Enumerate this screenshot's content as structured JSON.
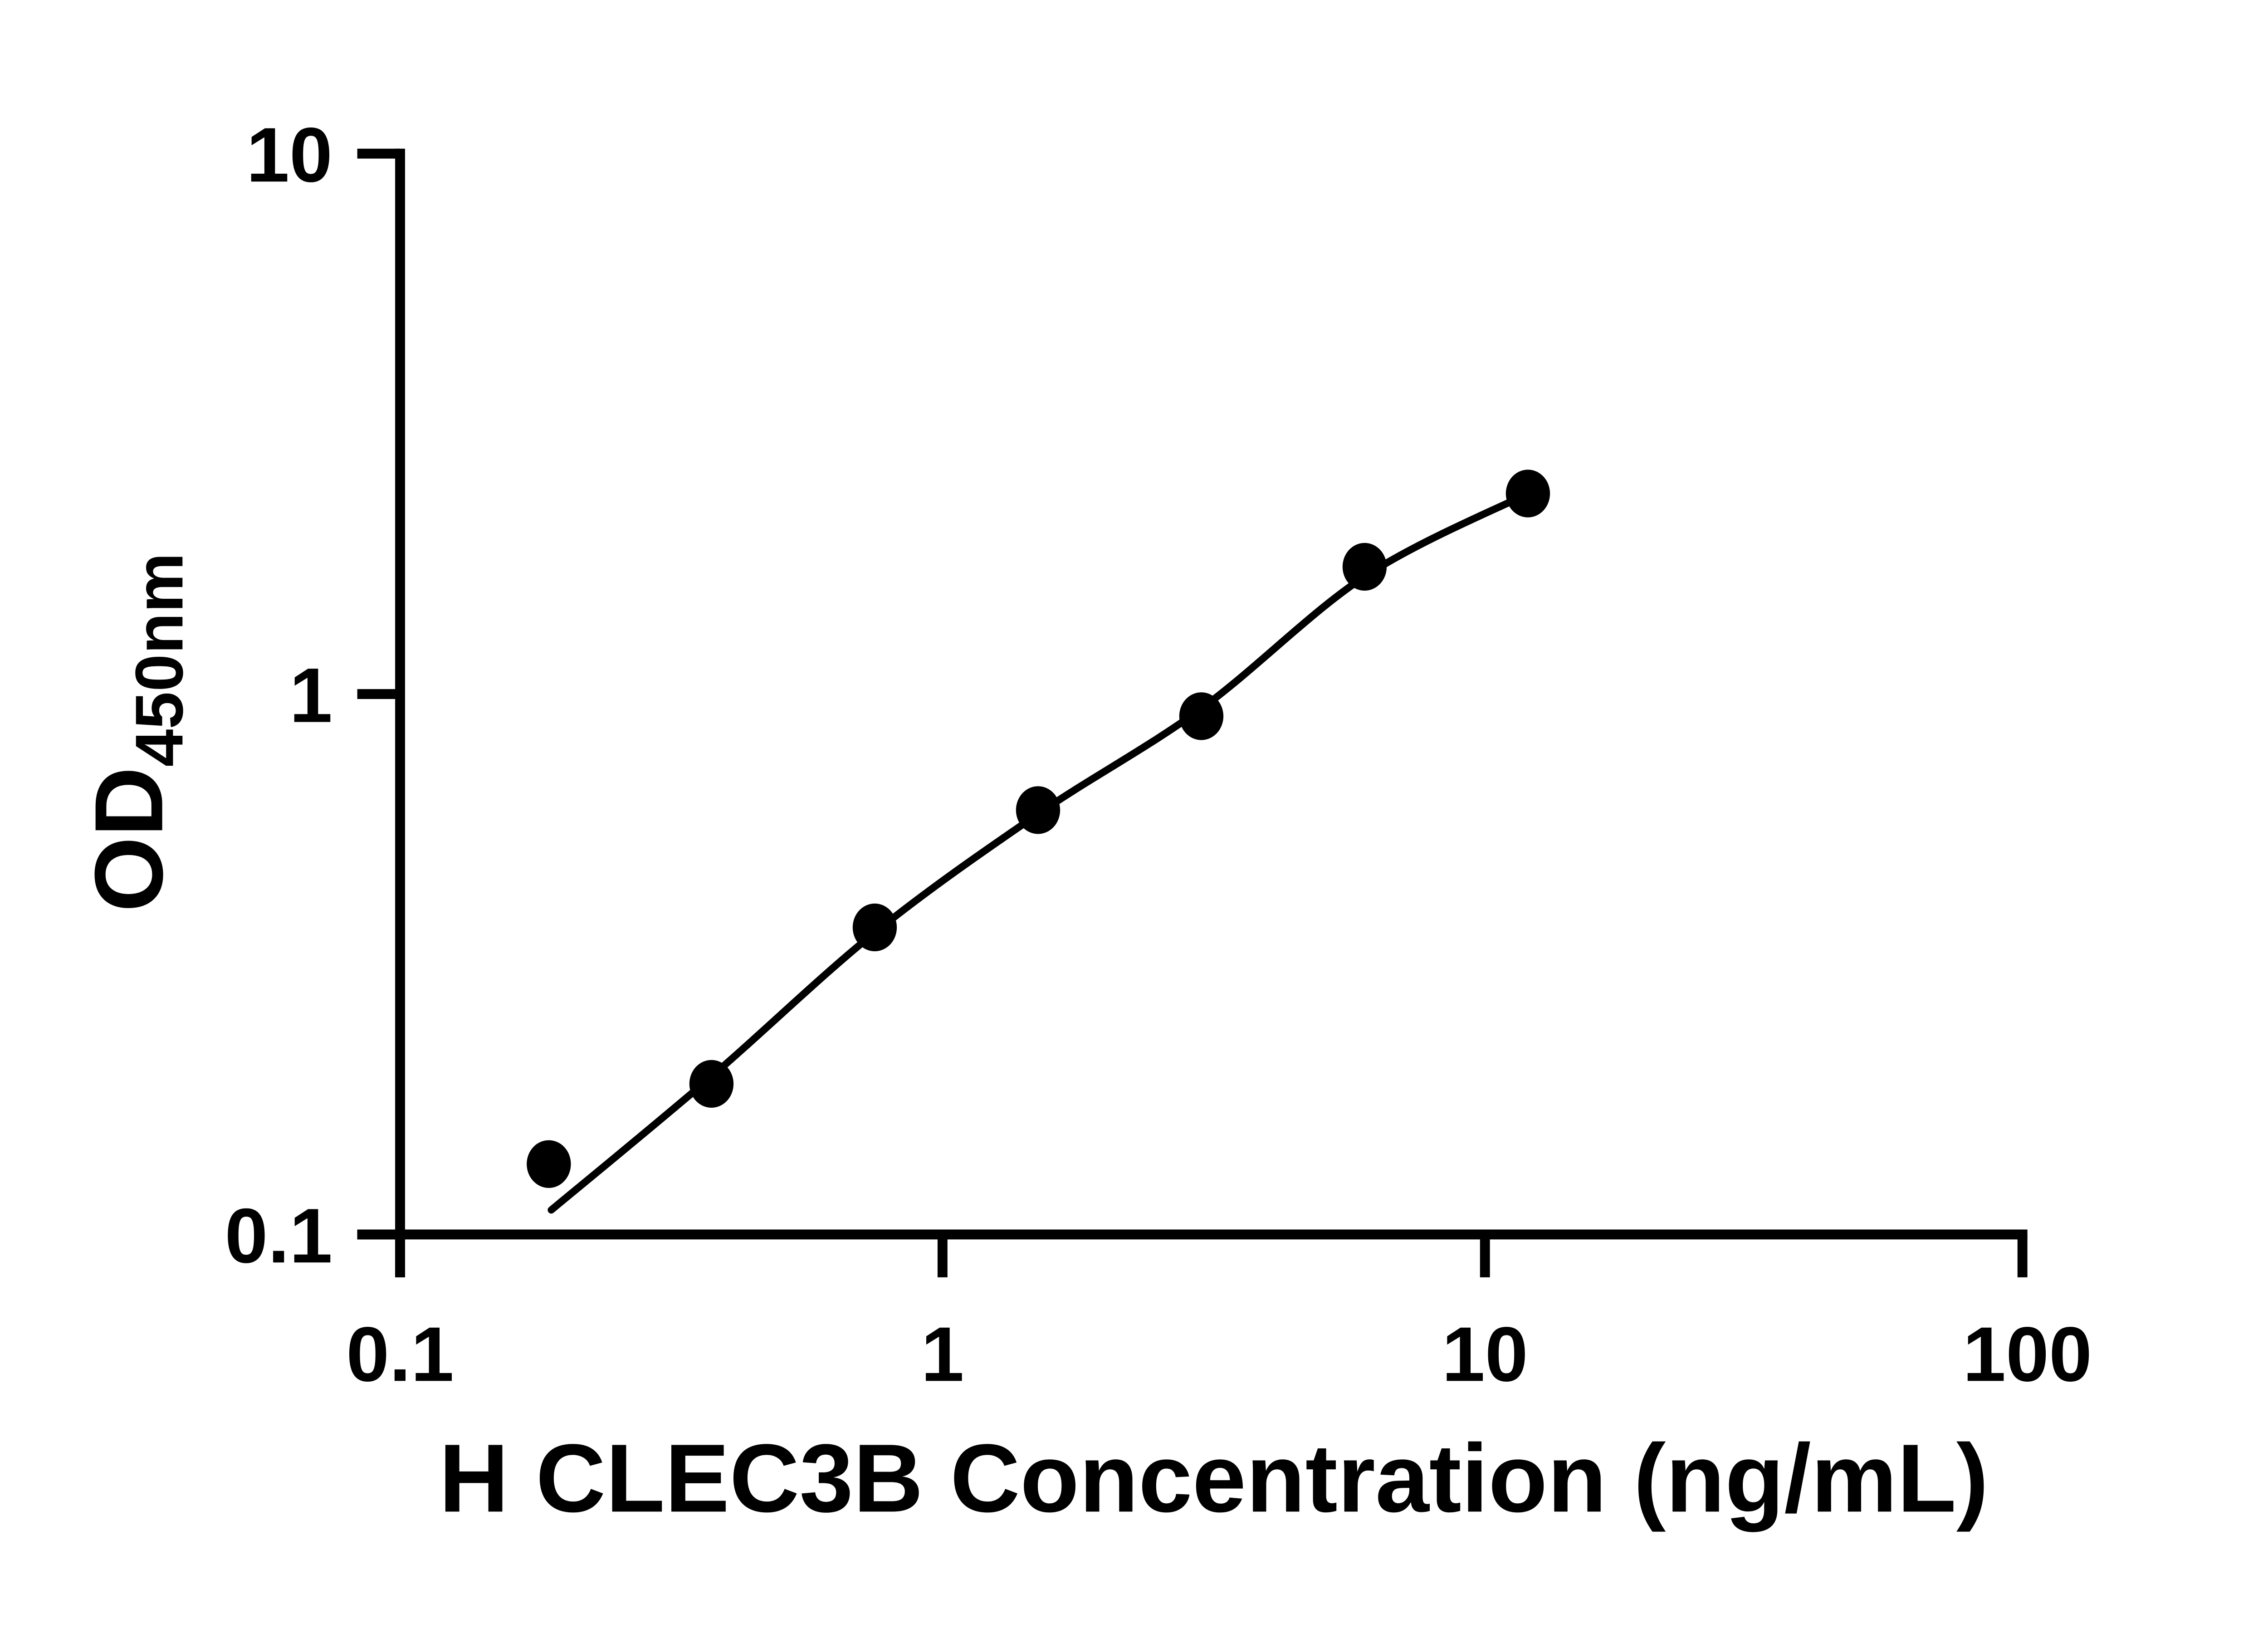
{
  "chart_data": {
    "type": "scatter",
    "title": "",
    "xlabel": "H CLEC3B Concentration (ng/mL)",
    "ylabel": "OD",
    "ylabel_subscript": "450nm",
    "x_scale": "log",
    "y_scale": "log",
    "xlim": [
      0.1,
      100
    ],
    "ylim": [
      0.1,
      10
    ],
    "x_ticks": [
      0.1,
      1,
      10,
      100
    ],
    "x_tick_labels": [
      "0.1",
      "1",
      "10",
      "100"
    ],
    "y_ticks": [
      0.1,
      1,
      10
    ],
    "y_tick_labels": [
      "0.1",
      "1",
      "10"
    ],
    "grid": false,
    "legend": null,
    "marker": "circle",
    "marker_color": "#000000",
    "curve_color": "#000000",
    "axis_color": "#000000",
    "background_color": "#ffffff",
    "points": [
      {
        "x": 0.188,
        "y": 0.135
      },
      {
        "x": 0.375,
        "y": 0.19
      },
      {
        "x": 0.75,
        "y": 0.37
      },
      {
        "x": 1.5,
        "y": 0.61
      },
      {
        "x": 3,
        "y": 0.91
      },
      {
        "x": 6,
        "y": 1.72
      },
      {
        "x": 12,
        "y": 2.35
      }
    ],
    "curve_fit": [
      {
        "x": 0.19,
        "y": 0.111
      },
      {
        "x": 0.375,
        "y": 0.196
      },
      {
        "x": 0.75,
        "y": 0.362
      },
      {
        "x": 1.5,
        "y": 0.6
      },
      {
        "x": 3,
        "y": 0.94
      },
      {
        "x": 6,
        "y": 1.65
      },
      {
        "x": 12,
        "y": 2.35
      }
    ]
  }
}
